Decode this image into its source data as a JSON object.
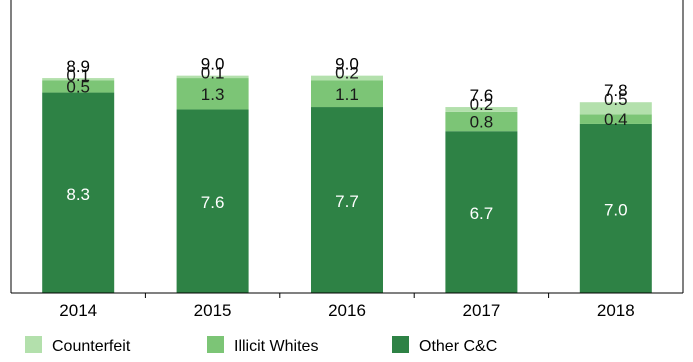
{
  "chart_data": {
    "type": "bar",
    "stacked": true,
    "categories": [
      "2014",
      "2015",
      "2016",
      "2017",
      "2018"
    ],
    "series": [
      {
        "name": "Other C&C",
        "color": "#2e8245",
        "values": [
          8.3,
          7.6,
          7.7,
          6.7,
          7.0
        ],
        "labels": [
          "8.3",
          "7.6",
          "7.7",
          "6.7",
          "7.0"
        ]
      },
      {
        "name": "Illicit Whites",
        "color": "#7cc576",
        "values": [
          0.5,
          1.3,
          1.1,
          0.8,
          0.4
        ],
        "labels": [
          "0.5",
          "1.3",
          "1.1",
          "0.8",
          "0.4"
        ]
      },
      {
        "name": "Counterfeit",
        "color": "#b3e0ac",
        "values": [
          0.1,
          0.1,
          0.2,
          0.2,
          0.5
        ],
        "labels": [
          "0.1",
          "0.1",
          "0.2",
          "0.2",
          "0.5"
        ]
      }
    ],
    "totals": [
      "8.9",
      "9.0",
      "9.0",
      "7.6",
      "7.8"
    ],
    "legend": {
      "position": "bottom",
      "order": [
        "Counterfeit",
        "Illicit Whites",
        "Other C&C"
      ]
    },
    "ylim": [
      0,
      10
    ],
    "grid": false,
    "title": "",
    "xlabel": "",
    "ylabel": ""
  }
}
